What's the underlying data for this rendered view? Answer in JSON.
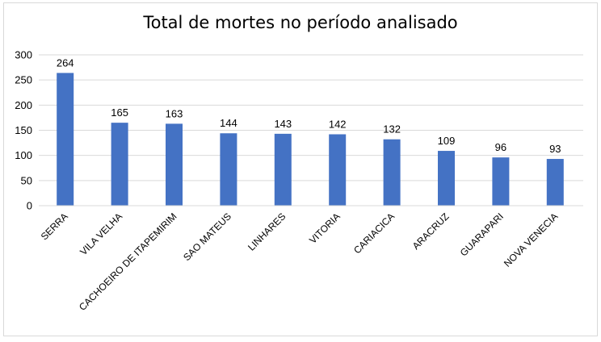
{
  "chart_data": {
    "type": "bar",
    "title": "Total de mortes no período analisado",
    "xlabel": "",
    "ylabel": "",
    "ylim": [
      0,
      300
    ],
    "yticks": [
      0,
      50,
      100,
      150,
      200,
      250,
      300
    ],
    "grid": true,
    "legend": "none",
    "bar_color": "#4472c4",
    "categories": [
      "SERRA",
      "VILA VELHA",
      "CACHOEIRO DE ITAPEMIRIM",
      "SAO MATEUS",
      "LINHARES",
      "VITORIA",
      "CARIACICA",
      "ARACRUZ",
      "GUARAPARI",
      "NOVA VENECIA"
    ],
    "values": [
      264,
      165,
      163,
      144,
      143,
      142,
      132,
      109,
      96,
      93
    ]
  }
}
